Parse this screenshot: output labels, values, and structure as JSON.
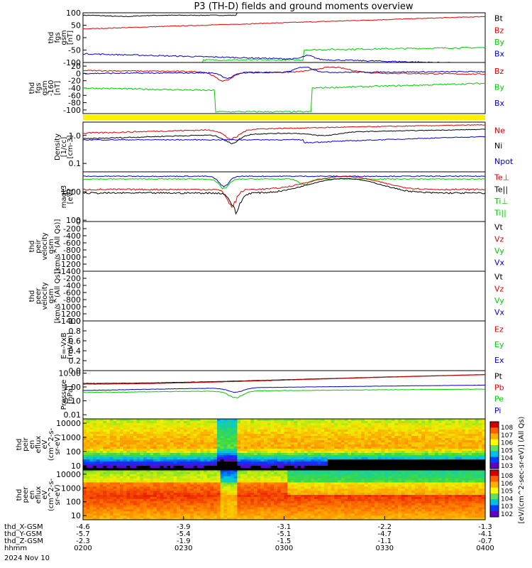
{
  "title": "P3 (TH-D) fields and ground moments overview",
  "colors": {
    "black": "#000000",
    "red": "#e00000",
    "green": "#00cc00",
    "blue": "#0000cc",
    "yellow": "#ffee00"
  },
  "chart_data": [
    {
      "type": "line",
      "panel": "fgs_gsm",
      "ylabel": [
        "thd",
        "fgs",
        "gsm",
        "[nT]"
      ],
      "ylim": [
        -100,
        100
      ],
      "yticks": [
        "100",
        "50",
        "0",
        "-50",
        "-100"
      ],
      "legend": [
        {
          "name": "Bt",
          "color": "black"
        },
        {
          "name": "Bz",
          "color": "red"
        },
        {
          "name": "By",
          "color": "green"
        },
        {
          "name": "Bx",
          "color": "blue"
        }
      ]
    },
    {
      "type": "line",
      "panel": "fgs_gsm_zoom",
      "ylabel": [
        "thd",
        "fgs",
        "gsm",
        "-160",
        "[nT]"
      ],
      "ylim": [
        -110,
        30
      ],
      "yticks": [
        "20",
        "0",
        "-20",
        "-40",
        "-60",
        "-80",
        "-100"
      ],
      "legend": [
        {
          "name": "Bz",
          "color": "red"
        },
        {
          "name": "By",
          "color": "green"
        },
        {
          "name": "Bx",
          "color": "blue"
        }
      ]
    },
    {
      "type": "line",
      "panel": "density",
      "ylabel": [
        "Density",
        "[1/cc]",
        "[cm-3]"
      ],
      "scale": "log",
      "ylim": [
        0.05,
        3
      ],
      "yticks": [
        "1.0",
        "0.1"
      ],
      "legend": [
        {
          "name": "Ne",
          "color": "red"
        },
        {
          "name": "Ni",
          "color": "black"
        },
        {
          "name": "Npot",
          "color": "blue"
        }
      ]
    },
    {
      "type": "line",
      "panel": "temperature",
      "ylabel": [
        "magt3",
        "[eV]"
      ],
      "scale": "log",
      "ylim": [
        90,
        5000
      ],
      "yticks": [
        "1000",
        "100"
      ],
      "legend": [
        {
          "name": "Te⊥",
          "color": "red"
        },
        {
          "name": "Te||",
          "color": "black"
        },
        {
          "name": "Ti⊥",
          "color": "green"
        },
        {
          "name": "Ti||",
          "color": "green"
        }
      ]
    },
    {
      "type": "line",
      "panel": "peir_velocity",
      "ylabel": [
        "thd",
        "peir",
        "velocity",
        "gsm",
        "[km/s^(All Qs)]"
      ],
      "ylim": [
        -1400,
        0
      ],
      "yticks": [
        "0",
        "-200",
        "-400",
        "-600",
        "-800",
        "-1000",
        "-1200",
        "-1400"
      ],
      "legend": [
        {
          "name": "Vt",
          "color": "black"
        },
        {
          "name": "Vz",
          "color": "red"
        },
        {
          "name": "Vy",
          "color": "green"
        },
        {
          "name": "Vx",
          "color": "blue"
        }
      ]
    },
    {
      "type": "line",
      "panel": "peer_velocity",
      "ylabel": [
        "thd",
        "peer",
        "velocity",
        "gsm",
        "[km/s^(All Qs)]"
      ],
      "ylim": [
        -1400,
        0
      ],
      "yticks": [
        "-200",
        "-400",
        "-600",
        "-800",
        "-1000",
        "-1200",
        "-1400"
      ],
      "legend": [
        {
          "name": "Vt",
          "color": "black"
        },
        {
          "name": "Vz",
          "color": "red"
        },
        {
          "name": "Vy",
          "color": "green"
        },
        {
          "name": "Vx",
          "color": "blue"
        }
      ]
    },
    {
      "type": "line",
      "panel": "efield",
      "ylabel": [
        "E=-VxB",
        "[mV/m]"
      ],
      "ylim": [
        0,
        1
      ],
      "yticks": [
        "1.0",
        "0.8",
        "0.6",
        "0.4",
        "0.2",
        "0.0"
      ],
      "legend": [
        {
          "name": "Ez",
          "color": "red"
        },
        {
          "name": "Ey",
          "color": "green"
        },
        {
          "name": "Ex",
          "color": "blue"
        }
      ]
    },
    {
      "type": "line",
      "panel": "pressure",
      "ylabel": [
        "Pressure",
        "[nPa]"
      ],
      "scale": "log",
      "ylim": [
        0.005,
        15
      ],
      "yticks": [
        "10.00",
        "1.00",
        "0.10",
        "0.01"
      ],
      "legend": [
        {
          "name": "Pt",
          "color": "black"
        },
        {
          "name": "Pb",
          "color": "red"
        },
        {
          "name": "Pe",
          "color": "green"
        },
        {
          "name": "Pi",
          "color": "blue"
        }
      ]
    },
    {
      "type": "heatmap",
      "panel": "peir_eflux",
      "ylabel": [
        "thd",
        "peir",
        "en",
        "eflux",
        "eV",
        "(cm^2-s-",
        "sr-eV)"
      ],
      "scale": "log",
      "yticks": [
        "10000",
        "1000",
        "100",
        "10"
      ]
    },
    {
      "type": "heatmap",
      "panel": "peer_eflux",
      "ylabel": [
        "thd",
        "peer",
        "en",
        "eflux",
        "eV",
        "(cm^2-s-",
        "sr-eV)"
      ],
      "scale": "log",
      "yticks": [
        "10000",
        "1000",
        "100",
        "10"
      ]
    }
  ],
  "colorbar": {
    "label": "[eV/(cm^2-sec-sr-eV)] (All Qs)",
    "upper_ticks": [
      "10^8",
      "10^7",
      "10^6",
      "10^5",
      "10^4",
      "10^3"
    ],
    "lower_ticks": [
      "10^8",
      "10^6",
      "10^5",
      "10^4",
      "10^3",
      "10^2"
    ]
  },
  "xaxis": {
    "rows": [
      {
        "label": "thd_X-GSM",
        "values": [
          "-4.6",
          "-3.9",
          "-3.1",
          "-2.2",
          "-1.3"
        ]
      },
      {
        "label": "thd_Y-GSM",
        "values": [
          "-5.7",
          "-5.4",
          "-5.1",
          "-4.7",
          "-4.1"
        ]
      },
      {
        "label": "thd_Z-GSM",
        "values": [
          "-2.3",
          "-1.9",
          "-1.5",
          "-1.1",
          "-0.7"
        ]
      },
      {
        "label": "hhmm",
        "values": [
          "0200",
          "0230",
          "0300",
          "0330",
          "0400"
        ]
      }
    ],
    "date": "2024 Nov 10"
  }
}
